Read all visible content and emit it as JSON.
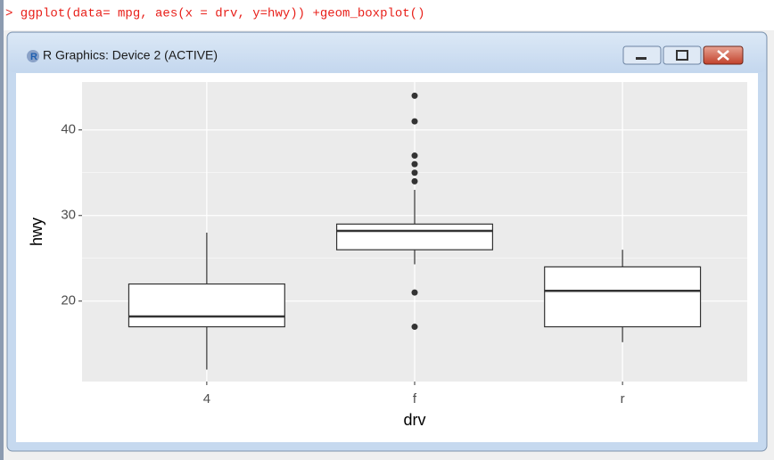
{
  "console": {
    "command": "> ggplot(data= mpg, aes(x = drv, y=hwy)) +geom_boxplot()"
  },
  "window": {
    "title": "R Graphics: Device 2 (ACTIVE)"
  },
  "chart_data": {
    "type": "boxplot",
    "x_label": "drv",
    "y_label": "hwy",
    "categories": [
      "4",
      "f",
      "r"
    ],
    "boxes": [
      {
        "whisker_low": 12,
        "q1": 17,
        "median": 18.2,
        "q3": 22,
        "whisker_high": 28,
        "outliers": []
      },
      {
        "whisker_low": 24.3,
        "q1": 26,
        "median": 28.2,
        "q3": 29,
        "whisker_high": 33,
        "outliers": [
          44,
          41,
          37,
          36,
          35,
          34,
          21,
          17
        ]
      },
      {
        "whisker_low": 15.2,
        "q1": 17,
        "median": 21.2,
        "q3": 24,
        "whisker_high": 26,
        "outliers": []
      }
    ],
    "ylim": [
      10.6,
      45.6
    ],
    "yticks": [
      20,
      30,
      40
    ],
    "grid": true,
    "panel_color": "#ebebeb",
    "box_color": "#ffffff",
    "line_color": "#333333"
  }
}
